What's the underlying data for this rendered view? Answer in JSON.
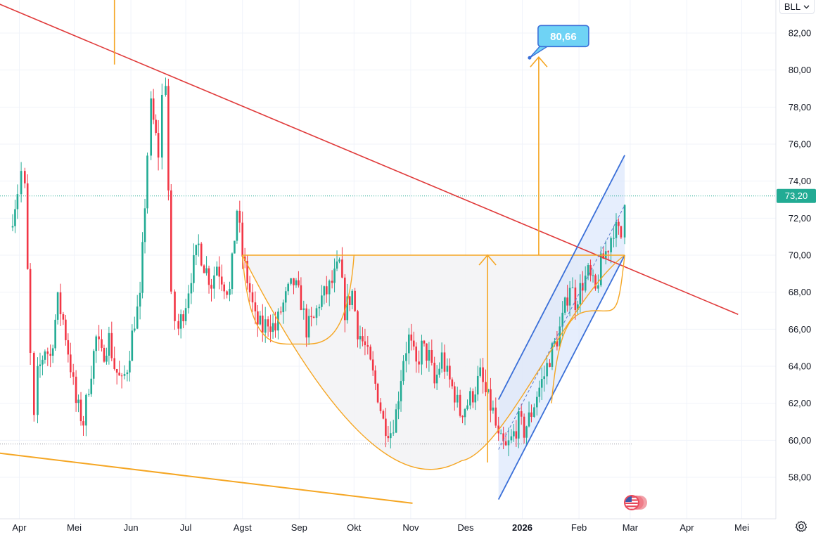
{
  "chart_data": {
    "type": "candlestick",
    "symbol": "BLL",
    "last_price": 73.2,
    "last_price_label": "73,20",
    "target_label": "80,66",
    "y_range": [
      56.4,
      84.2
    ],
    "y_ticks": [
      "58,00",
      "60,00",
      "62,00",
      "64,00",
      "66,00",
      "68,00",
      "70,00",
      "72,00",
      "74,00",
      "76,00",
      "78,00",
      "80,00",
      "82,00"
    ],
    "x_ticks": [
      {
        "label": "Apr",
        "bold": false
      },
      {
        "label": "Mei",
        "bold": false
      },
      {
        "label": "Jun",
        "bold": false
      },
      {
        "label": "Jul",
        "bold": false
      },
      {
        "label": "Agst",
        "bold": false
      },
      {
        "label": "Sep",
        "bold": false
      },
      {
        "label": "Okt",
        "bold": false
      },
      {
        "label": "Nov",
        "bold": false
      },
      {
        "label": "Des",
        "bold": false
      },
      {
        "label": "2026",
        "bold": true
      },
      {
        "label": "Feb",
        "bold": false
      },
      {
        "label": "Mar",
        "bold": false
      },
      {
        "label": "Apr",
        "bold": false
      },
      {
        "label": "Mei",
        "bold": false
      }
    ],
    "colors": {
      "up": "#22ab94",
      "down": "#f23645",
      "red_line": "#e03a3a",
      "orange_line": "#f5a623",
      "channel": "#3a6fd8",
      "target_box": "#6fd3f5"
    },
    "close_path": [
      [
        "2025-03-27",
        71.5
      ],
      [
        "2025-03-31",
        73.5
      ],
      [
        "2025-04-02",
        74.5
      ],
      [
        "2025-04-04",
        73.5
      ],
      [
        "2025-04-07",
        64.5
      ],
      [
        "2025-04-09",
        61.0
      ],
      [
        "2025-04-11",
        63.5
      ],
      [
        "2025-04-15",
        65.0
      ],
      [
        "2025-04-18",
        64.5
      ],
      [
        "2025-04-22",
        67.5
      ],
      [
        "2025-04-25",
        66.5
      ],
      [
        "2025-04-29",
        64.0
      ],
      [
        "2025-05-02",
        62.0
      ],
      [
        "2025-05-06",
        61.0
      ],
      [
        "2025-05-09",
        63.0
      ],
      [
        "2025-05-13",
        65.5
      ],
      [
        "2025-05-16",
        64.5
      ],
      [
        "2025-05-20",
        65.5
      ],
      [
        "2025-05-23",
        64.0
      ],
      [
        "2025-05-27",
        63.0
      ],
      [
        "2025-05-30",
        64.0
      ],
      [
        "2025-06-03",
        66.5
      ],
      [
        "2025-06-06",
        67.5
      ],
      [
        "2025-06-10",
        75.5
      ],
      [
        "2025-06-12",
        78.0
      ],
      [
        "2025-06-16",
        75.5
      ],
      [
        "2025-06-18",
        78.5
      ],
      [
        "2025-06-20",
        79.5
      ],
      [
        "2025-06-23",
        67.5
      ],
      [
        "2025-06-25",
        66.5
      ],
      [
        "2025-06-27",
        66.0
      ],
      [
        "2025-07-01",
        67.5
      ],
      [
        "2025-07-04",
        69.0
      ],
      [
        "2025-07-08",
        70.5
      ],
      [
        "2025-07-11",
        69.5
      ],
      [
        "2025-07-15",
        68.5
      ],
      [
        "2025-07-18",
        69.5
      ],
      [
        "2025-07-22",
        68.5
      ],
      [
        "2025-07-25",
        68.0
      ],
      [
        "2025-07-29",
        72.5
      ],
      [
        "2025-08-01",
        70.0
      ],
      [
        "2025-08-05",
        68.0
      ],
      [
        "2025-08-08",
        66.5
      ],
      [
        "2025-08-12",
        66.0
      ],
      [
        "2025-08-15",
        66.5
      ],
      [
        "2025-08-19",
        66.0
      ],
      [
        "2025-08-22",
        67.0
      ],
      [
        "2025-08-26",
        68.0
      ],
      [
        "2025-08-29",
        68.5
      ],
      [
        "2025-09-02",
        67.5
      ],
      [
        "2025-09-05",
        66.0
      ],
      [
        "2025-09-09",
        66.5
      ],
      [
        "2025-09-12",
        67.5
      ],
      [
        "2025-09-16",
        68.0
      ],
      [
        "2025-09-19",
        68.5
      ],
      [
        "2025-09-23",
        69.5
      ],
      [
        "2025-09-26",
        67.0
      ],
      [
        "2025-09-30",
        68.0
      ],
      [
        "2025-10-03",
        66.0
      ],
      [
        "2025-10-07",
        65.0
      ],
      [
        "2025-10-10",
        64.0
      ],
      [
        "2025-10-14",
        62.5
      ],
      [
        "2025-10-17",
        61.0
      ],
      [
        "2025-10-21",
        60.5
      ],
      [
        "2025-10-24",
        61.5
      ],
      [
        "2025-10-28",
        64.5
      ],
      [
        "2025-10-31",
        65.5
      ],
      [
        "2025-11-04",
        64.0
      ],
      [
        "2025-11-07",
        65.0
      ],
      [
        "2025-11-11",
        64.5
      ],
      [
        "2025-11-14",
        63.0
      ],
      [
        "2025-11-18",
        64.5
      ],
      [
        "2025-11-21",
        63.5
      ],
      [
        "2025-11-25",
        62.5
      ],
      [
        "2025-11-28",
        61.5
      ],
      [
        "2025-12-02",
        62.0
      ],
      [
        "2025-12-05",
        62.5
      ],
      [
        "2025-12-09",
        63.5
      ],
      [
        "2025-12-12",
        62.5
      ],
      [
        "2025-12-16",
        61.5
      ],
      [
        "2025-12-19",
        60.0
      ],
      [
        "2025-12-23",
        59.5
      ],
      [
        "2025-12-26",
        60.0
      ],
      [
        "2025-12-30",
        61.0
      ],
      [
        "2026-01-02",
        60.5
      ],
      [
        "2026-01-06",
        61.5
      ],
      [
        "2026-01-09",
        62.5
      ],
      [
        "2026-01-13",
        63.5
      ],
      [
        "2026-01-16",
        64.5
      ],
      [
        "2026-01-20",
        65.5
      ],
      [
        "2026-01-23",
        66.5
      ],
      [
        "2026-01-27",
        68.5
      ],
      [
        "2026-01-30",
        67.5
      ],
      [
        "2026-02-03",
        68.5
      ],
      [
        "2026-02-06",
        69.0
      ],
      [
        "2026-02-10",
        68.0
      ],
      [
        "2026-02-13",
        69.5
      ],
      [
        "2026-02-17",
        70.5
      ],
      [
        "2026-02-20",
        71.5
      ],
      [
        "2026-02-24",
        71.0
      ],
      [
        "2026-02-26",
        73.2
      ]
    ],
    "drawings": {
      "red_trendline": [
        [
          "2025-03-13",
          83.9
        ],
        [
          "2026-04-29",
          66.8
        ]
      ],
      "orange_support": [
        [
          "2025-03-13",
          59.4
        ],
        [
          "2025-11-02",
          56.6
        ]
      ],
      "neckline": [
        [
          "2025-08-01",
          70.0
        ],
        [
          "2026-02-26",
          70.0
        ]
      ],
      "top_marker": [
        [
          "2025-05-23",
          84.2
        ],
        [
          "2025-05-23",
          80.3
        ]
      ],
      "cup": {
        "left": [
          "2025-08-01",
          70.0
        ],
        "right": [
          "2026-02-26",
          70.0
        ],
        "bottom": [
          "2025-11-29",
          58.9
        ]
      },
      "handle1": {
        "left": [
          "2025-08-01",
          70.0
        ],
        "right": [
          "2025-10-01",
          70.0
        ],
        "bottom": [
          "2025-08-31",
          65.2
        ]
      },
      "handle2": {
        "left": [
          "2026-01-17",
          62.0
        ],
        "right": [
          "2026-02-26",
          70.0
        ],
        "bottom": [
          "2026-02-10",
          67.0
        ]
      },
      "measure_arrow": [
        [
          "2025-12-13",
          58.8
        ],
        [
          "2025-12-13",
          70.0
        ]
      ],
      "target_arrow": [
        [
          "2026-01-10",
          70.0
        ],
        [
          "2026-01-10",
          80.7
        ]
      ],
      "target_point": [
        "2026-01-05",
        80.66
      ],
      "channel": {
        "lower": [
          [
            "2025-12-19",
            56.8
          ],
          [
            "2026-02-26",
            70.0
          ]
        ],
        "upper": [
          [
            "2025-12-19",
            62.2
          ],
          [
            "2026-02-26",
            75.4
          ]
        ]
      },
      "dashed_mid": [
        [
          "2025-12-19",
          59.5
        ],
        [
          "2026-02-26",
          72.7
        ]
      ],
      "dotted_lines": [
        59.8,
        73.2
      ]
    }
  },
  "ui": {
    "symbol_label": "BLL",
    "chevron": "chevron-down-icon",
    "settings": "gear-icon",
    "flag": "us-flag-icon"
  }
}
